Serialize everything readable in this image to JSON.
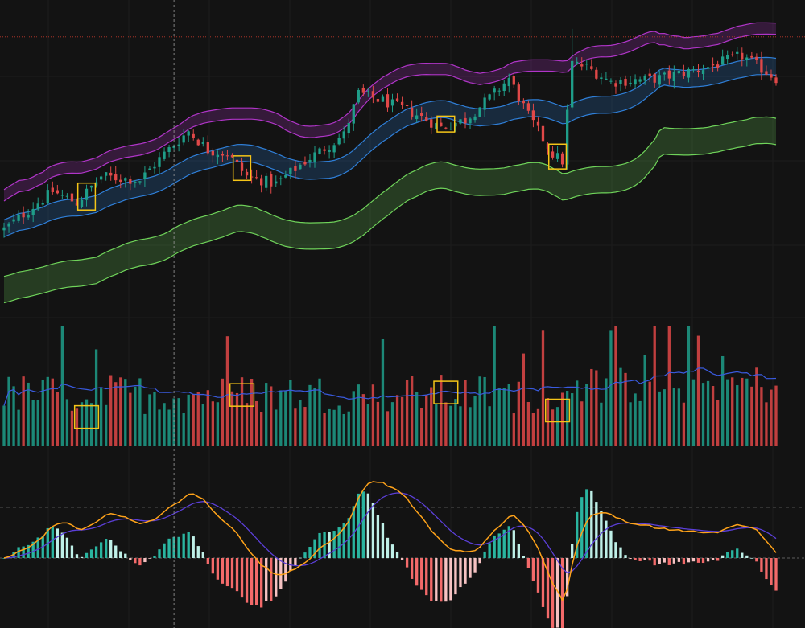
{
  "chart_data": {
    "type": "candlestick",
    "title": "",
    "panels": [
      "price",
      "volume",
      "macd"
    ],
    "grid": true,
    "legend": "none",
    "n_bars": 160,
    "price": {
      "start": 72,
      "end": 152,
      "anchors": [
        {
          "i": 0,
          "v": 72
        },
        {
          "i": 10,
          "v": 92
        },
        {
          "i": 15,
          "v": 86
        },
        {
          "i": 20,
          "v": 100
        },
        {
          "i": 28,
          "v": 98
        },
        {
          "i": 33,
          "v": 112
        },
        {
          "i": 38,
          "v": 124
        },
        {
          "i": 42,
          "v": 114
        },
        {
          "i": 46,
          "v": 112
        },
        {
          "i": 50,
          "v": 100
        },
        {
          "i": 56,
          "v": 96
        },
        {
          "i": 62,
          "v": 108
        },
        {
          "i": 70,
          "v": 122
        },
        {
          "i": 73,
          "v": 144
        },
        {
          "i": 78,
          "v": 140
        },
        {
          "i": 84,
          "v": 134
        },
        {
          "i": 90,
          "v": 126
        },
        {
          "i": 95,
          "v": 130
        },
        {
          "i": 101,
          "v": 144
        },
        {
          "i": 104,
          "v": 152
        },
        {
          "i": 108,
          "v": 132
        },
        {
          "i": 113,
          "v": 112
        },
        {
          "i": 115,
          "v": 108
        },
        {
          "i": 117,
          "v": 160
        },
        {
          "i": 120,
          "v": 158
        },
        {
          "i": 125,
          "v": 150
        },
        {
          "i": 135,
          "v": 152
        },
        {
          "i": 145,
          "v": 158
        },
        {
          "i": 152,
          "v": 164
        },
        {
          "i": 159,
          "v": 152
        }
      ],
      "reference_price": 174,
      "upper_band_color": "#b035c8",
      "middle_band_color": "#2f7fd8",
      "lower_band_color": "#6fd35a",
      "up_color": "#1f9e89",
      "down_color": "#e04848"
    },
    "highlights": [
      {
        "start": 16,
        "end": 18
      },
      {
        "start": 48,
        "end": 50
      },
      {
        "start": 90,
        "end": 92
      },
      {
        "start": 113,
        "end": 115
      }
    ],
    "volume": {
      "ma_color": "#3a5be0",
      "up_color": "#1f9e89",
      "down_color": "#e04848"
    },
    "macd": {
      "macd_color": "#ffa31a",
      "signal_color": "#5b3fd8",
      "hist_up_color": "#2ab5a0",
      "hist_down_color": "#f36a6a"
    },
    "highlight_color": "#f5c518",
    "crosshair_bar": 35
  }
}
